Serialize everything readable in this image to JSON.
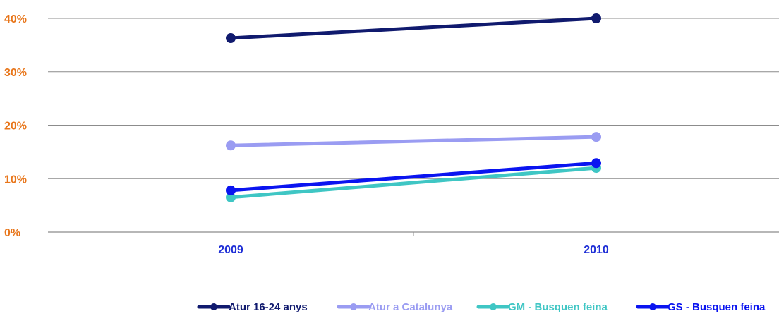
{
  "chart_data": {
    "type": "line",
    "categories": [
      "2009",
      "2010"
    ],
    "ylim": [
      0,
      40
    ],
    "yticks": [
      0,
      10,
      20,
      30,
      40
    ],
    "ytick_labels": [
      "0%",
      "10%",
      "20%",
      "30%",
      "40%"
    ],
    "grid": true,
    "legend_position": "bottom",
    "colors": {
      "ytick_labels": "#e8761b",
      "xtick_labels": "#1f2fd6",
      "gridline": "#8c8c8c",
      "axis": "#8c8c8c"
    },
    "series": [
      {
        "name": "Atur 16-24 anys",
        "color": "#101a6e",
        "values": [
          36.3,
          40.0
        ]
      },
      {
        "name": "Atur a Catalunya",
        "color": "#9a9cf2",
        "values": [
          16.2,
          17.8
        ]
      },
      {
        "name": "GM - Busquen feina",
        "color": "#3fc6c4",
        "values": [
          6.5,
          12.0
        ]
      },
      {
        "name": "GS - Busquen feina",
        "color": "#0a14f0",
        "values": [
          7.8,
          12.9
        ]
      }
    ]
  }
}
